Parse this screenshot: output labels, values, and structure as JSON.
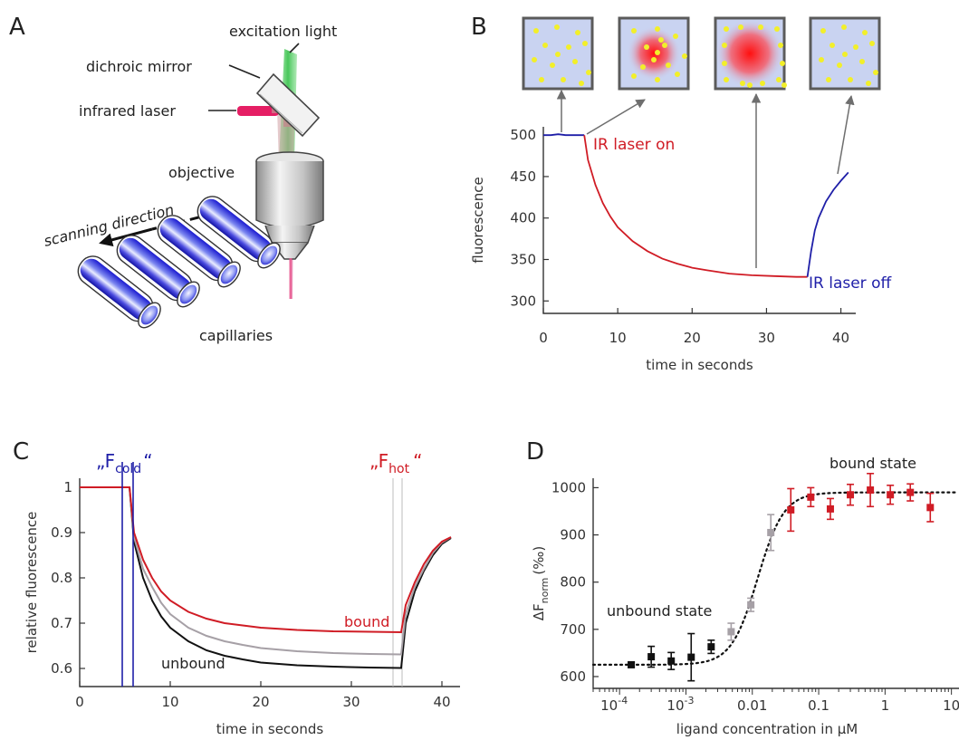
{
  "panels": {
    "a": {
      "letter": "A",
      "labels": {
        "excitation": "excitation light",
        "dichroic": "dichroic mirror",
        "infrared": "infrared laser",
        "objective": "objective",
        "scanning": "scanning direction",
        "capillaries": "capillaries"
      }
    },
    "b": {
      "letter": "B",
      "laser_on": "IR laser on",
      "laser_off": "IR laser off"
    },
    "c": {
      "letter": "C",
      "f_cold_open": "„F",
      "f_cold_sub": "cold",
      "f_cold_close": "“",
      "f_hot_open": "„F",
      "f_hot_sub": "hot",
      "f_hot_close": "“",
      "bound": "bound",
      "unbound": "unbound"
    },
    "d": {
      "letter": "D",
      "bound_state": "bound state",
      "unbound_state": "unbound state",
      "ylabel_main": "ΔF",
      "ylabel_sub": "norm",
      "ylabel_unit": "(‰)"
    }
  },
  "colors": {
    "blue": "#1f1fa8",
    "red": "#d01c25",
    "grey": "#a6a0a6",
    "black": "#111111",
    "box_fill": "#c9d3f1",
    "box_border": "#5b5b5b",
    "dot": "#f2ef2a"
  },
  "chart_data": [
    {
      "id": "b",
      "type": "line",
      "xlabel": "time in seconds",
      "ylabel": "fluorescence",
      "xlim": [
        0,
        42
      ],
      "ylim": [
        285,
        510
      ],
      "xticks": [
        0,
        10,
        20,
        30,
        40
      ],
      "yticks": [
        300,
        350,
        400,
        450,
        500
      ],
      "series": [
        {
          "color": "blue",
          "x": [
            0,
            1,
            2,
            3,
            4,
            5,
            5.5
          ],
          "y": [
            500,
            500,
            501,
            500,
            500,
            500,
            500
          ]
        },
        {
          "color": "red",
          "x": [
            5.5,
            6,
            7,
            8,
            9,
            10,
            12,
            14,
            16,
            18,
            20,
            22,
            25,
            28,
            31,
            34,
            35.5
          ],
          "y": [
            500,
            470,
            440,
            418,
            402,
            389,
            372,
            360,
            351,
            345,
            340,
            337,
            333,
            331,
            330,
            329,
            329
          ]
        },
        {
          "color": "blue",
          "x": [
            35.5,
            36,
            36.5,
            37,
            38,
            39,
            40,
            41
          ],
          "y": [
            329,
            360,
            385,
            400,
            420,
            434,
            445,
            455
          ]
        }
      ],
      "annotations": [
        "IR laser on",
        "IR laser off"
      ]
    },
    {
      "id": "c",
      "type": "line",
      "xlabel": "time in seconds",
      "ylabel": "relative fluorescence",
      "xlim": [
        0,
        42
      ],
      "ylim": [
        0.56,
        1.02
      ],
      "xticks": [
        0,
        10,
        20,
        30,
        40
      ],
      "yticks": [
        0.6,
        0.7,
        0.8,
        0.9,
        1
      ],
      "series": [
        {
          "name": "bound",
          "color": "red",
          "x": [
            0,
            5.5,
            6,
            7,
            8,
            9,
            10,
            12,
            14,
            16,
            18,
            20,
            24,
            28,
            32,
            35.5,
            36,
            37,
            38,
            39,
            40,
            41
          ],
          "y": [
            1,
            1,
            0.9,
            0.84,
            0.8,
            0.77,
            0.75,
            0.725,
            0.71,
            0.7,
            0.695,
            0.69,
            0.685,
            0.682,
            0.681,
            0.68,
            0.74,
            0.79,
            0.83,
            0.86,
            0.88,
            0.89
          ]
        },
        {
          "color": "grey",
          "x": [
            0,
            5.5,
            6,
            7,
            8,
            9,
            10,
            12,
            14,
            16,
            18,
            20,
            24,
            28,
            32,
            35.5,
            36,
            37,
            38,
            39,
            40,
            41
          ],
          "y": [
            1,
            1,
            0.89,
            0.82,
            0.78,
            0.745,
            0.72,
            0.69,
            0.672,
            0.66,
            0.652,
            0.645,
            0.638,
            0.634,
            0.632,
            0.631,
            0.72,
            0.78,
            0.82,
            0.855,
            0.878,
            0.89
          ]
        },
        {
          "name": "unbound",
          "color": "black",
          "x": [
            0,
            5.5,
            6,
            7,
            8,
            9,
            10,
            12,
            14,
            16,
            18,
            20,
            24,
            28,
            32,
            35.5,
            36,
            37,
            38,
            39,
            40,
            41
          ],
          "y": [
            1,
            1,
            0.88,
            0.8,
            0.75,
            0.715,
            0.69,
            0.66,
            0.64,
            0.628,
            0.62,
            0.613,
            0.607,
            0.604,
            0.602,
            0.601,
            0.7,
            0.77,
            0.815,
            0.85,
            0.875,
            0.888
          ]
        }
      ],
      "marker_lines": {
        "cold": [
          4.7,
          5.9
        ],
        "hot": [
          34.6,
          35.6
        ]
      }
    },
    {
      "id": "d",
      "type": "scatter",
      "xlabel": "ligand concentration in µM",
      "ylabel": "ΔFnorm (‰)",
      "xscale": "log",
      "xlim": [
        4e-05,
        13
      ],
      "ylim": [
        575,
        1020
      ],
      "yticks": [
        600,
        700,
        800,
        900,
        1000
      ],
      "xticks": [
        "10^-4",
        "10^-3",
        "0.01",
        "0.1",
        "1",
        "10"
      ],
      "points": [
        {
          "x": 0.00015,
          "y": 625,
          "err": 5,
          "color": "black"
        },
        {
          "x": 0.0003,
          "y": 642,
          "err": 22,
          "color": "black"
        },
        {
          "x": 0.0006,
          "y": 633,
          "err": 18,
          "color": "black"
        },
        {
          "x": 0.0012,
          "y": 641,
          "err": 50,
          "color": "black"
        },
        {
          "x": 0.0024,
          "y": 663,
          "err": 14,
          "color": "black"
        },
        {
          "x": 0.0048,
          "y": 695,
          "err": 18,
          "color": "grey"
        },
        {
          "x": 0.0095,
          "y": 752,
          "err": 14,
          "color": "grey"
        },
        {
          "x": 0.019,
          "y": 905,
          "err": 38,
          "color": "grey"
        },
        {
          "x": 0.038,
          "y": 953,
          "err": 45,
          "color": "red"
        },
        {
          "x": 0.076,
          "y": 980,
          "err": 20,
          "color": "red"
        },
        {
          "x": 0.15,
          "y": 955,
          "err": 22,
          "color": "red"
        },
        {
          "x": 0.3,
          "y": 985,
          "err": 22,
          "color": "red"
        },
        {
          "x": 0.6,
          "y": 995,
          "err": 35,
          "color": "red"
        },
        {
          "x": 1.2,
          "y": 985,
          "err": 20,
          "color": "red"
        },
        {
          "x": 2.4,
          "y": 990,
          "err": 18,
          "color": "red"
        },
        {
          "x": 4.8,
          "y": 958,
          "err": 30,
          "color": "red"
        }
      ],
      "fit": {
        "bottom": 625,
        "top": 990,
        "ec50": 0.012,
        "hill": 2.2
      },
      "annotations": [
        "unbound state",
        "bound state"
      ]
    }
  ]
}
